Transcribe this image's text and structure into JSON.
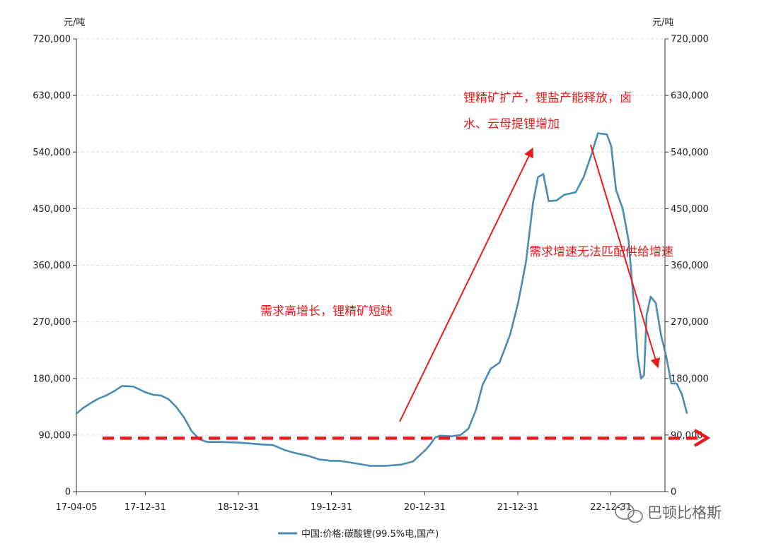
{
  "chart_data": {
    "type": "line",
    "unit_left": "元/吨",
    "unit_right": "元/吨",
    "ylim": [
      0,
      720000
    ],
    "yticks": [
      0,
      90000,
      180000,
      270000,
      360000,
      450000,
      540000,
      630000,
      720000
    ],
    "ytick_labels": [
      "0",
      "90,000",
      "180,000",
      "270,000",
      "360,000",
      "450,000",
      "540,000",
      "630,000",
      "720,000"
    ],
    "xlim": [
      "2017-04-05",
      "2023-07-31"
    ],
    "xticks": [
      "2017-04-05",
      "2017-12-31",
      "2018-12-31",
      "2019-12-31",
      "2020-12-31",
      "2021-12-31",
      "2022-12-31"
    ],
    "xtick_labels": [
      "17-04-05",
      "17-12-31",
      "18-12-31",
      "19-12-31",
      "20-12-31",
      "21-12-31",
      "22-12-31"
    ],
    "grid": true,
    "legend_position": "bottom",
    "colors": {
      "series": "#4a8cb0",
      "annotation": "#e81c1c"
    },
    "series": [
      {
        "name": "中国:价格:碳酸锂(99.5%电,国产)",
        "points": [
          [
            "2017-04-05",
            124000
          ],
          [
            "2017-05-01",
            133000
          ],
          [
            "2017-06-01",
            141000
          ],
          [
            "2017-07-01",
            148000
          ],
          [
            "2017-08-01",
            153000
          ],
          [
            "2017-09-01",
            160000
          ],
          [
            "2017-10-01",
            168000
          ],
          [
            "2017-11-15",
            167000
          ],
          [
            "2017-12-31",
            158000
          ],
          [
            "2018-01-31",
            154000
          ],
          [
            "2018-03-01",
            153000
          ],
          [
            "2018-04-01",
            147000
          ],
          [
            "2018-05-01",
            135000
          ],
          [
            "2018-06-01",
            118000
          ],
          [
            "2018-07-01",
            96000
          ],
          [
            "2018-08-01",
            83000
          ],
          [
            "2018-09-01",
            79000
          ],
          [
            "2018-10-15",
            79000
          ],
          [
            "2018-12-31",
            78000
          ],
          [
            "2019-02-01",
            77000
          ],
          [
            "2019-04-01",
            75000
          ],
          [
            "2019-05-15",
            74000
          ],
          [
            "2019-07-01",
            66000
          ],
          [
            "2019-08-15",
            61000
          ],
          [
            "2019-10-01",
            57000
          ],
          [
            "2019-11-15",
            51000
          ],
          [
            "2019-12-31",
            49000
          ],
          [
            "2020-02-01",
            49000
          ],
          [
            "2020-04-01",
            45000
          ],
          [
            "2020-06-01",
            41000
          ],
          [
            "2020-08-01",
            41000
          ],
          [
            "2020-10-01",
            43000
          ],
          [
            "2020-11-15",
            48000
          ],
          [
            "2020-12-31",
            65000
          ],
          [
            "2021-01-20",
            74000
          ],
          [
            "2021-02-10",
            86000
          ],
          [
            "2021-03-01",
            89000
          ],
          [
            "2021-04-15",
            88000
          ],
          [
            "2021-05-20",
            90000
          ],
          [
            "2021-06-20",
            100000
          ],
          [
            "2021-07-20",
            130000
          ],
          [
            "2021-08-15",
            170000
          ],
          [
            "2021-09-15",
            195000
          ],
          [
            "2021-10-20",
            205000
          ],
          [
            "2021-12-01",
            250000
          ],
          [
            "2022-01-01",
            300000
          ],
          [
            "2022-02-01",
            365000
          ],
          [
            "2022-03-01",
            460000
          ],
          [
            "2022-03-20",
            500000
          ],
          [
            "2022-04-10",
            505000
          ],
          [
            "2022-05-01",
            462000
          ],
          [
            "2022-06-01",
            463000
          ],
          [
            "2022-07-01",
            472000
          ],
          [
            "2022-08-15",
            476000
          ],
          [
            "2022-09-15",
            500000
          ],
          [
            "2022-10-15",
            535000
          ],
          [
            "2022-11-10",
            570000
          ],
          [
            "2022-12-15",
            568000
          ],
          [
            "2023-01-01",
            550000
          ],
          [
            "2023-01-20",
            480000
          ],
          [
            "2023-02-15",
            450000
          ],
          [
            "2023-03-10",
            400000
          ],
          [
            "2023-03-31",
            300000
          ],
          [
            "2023-04-15",
            215000
          ],
          [
            "2023-04-28",
            180000
          ],
          [
            "2023-05-10",
            185000
          ],
          [
            "2023-05-20",
            280000
          ],
          [
            "2023-06-05",
            310000
          ],
          [
            "2023-06-25",
            300000
          ],
          [
            "2023-07-15",
            250000
          ],
          [
            "2023-08-05",
            215000
          ],
          [
            "2023-08-25",
            172000
          ],
          [
            "2023-09-15",
            172000
          ],
          [
            "2023-10-05",
            155000
          ],
          [
            "2023-10-25",
            125000
          ]
        ]
      }
    ],
    "reference_line": {
      "value": 85000,
      "style": "dashed",
      "color": "#e81c1c"
    },
    "annotations": [
      {
        "text": "需求高增长，锂精矿短缺"
      },
      {
        "lines": [
          "锂精矿扩产，锂盐产能释放，卤",
          "水、云母提锂增加"
        ]
      },
      {
        "text": "需求增速无法匹配供给增速"
      }
    ]
  },
  "watermark": {
    "text": "巴顿比格斯",
    "icon": "wechat-icon"
  }
}
